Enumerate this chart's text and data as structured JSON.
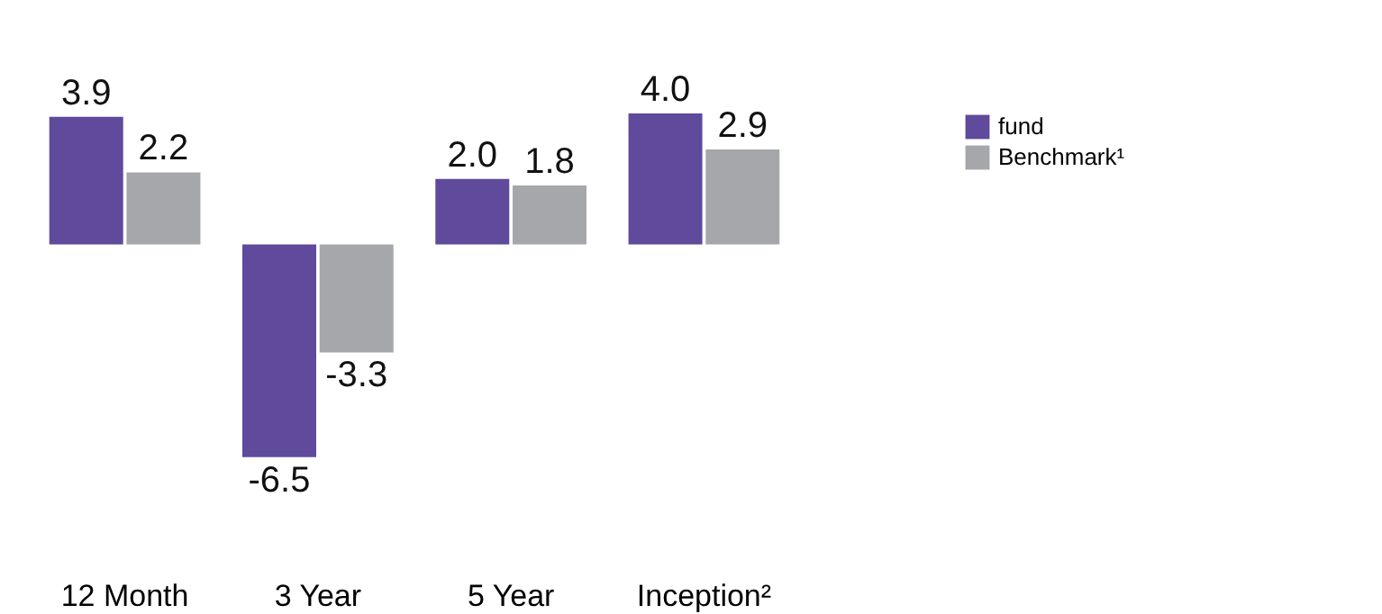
{
  "chart_data": {
    "type": "bar",
    "categories": [
      "12 Month",
      "3 Year",
      "5 Year",
      "Inception²"
    ],
    "series": [
      {
        "name": "fund",
        "color": "#5f4a9c",
        "values": [
          3.9,
          -6.5,
          2.0,
          4.0
        ],
        "value_labels": [
          "3.9",
          "-6.5",
          "2.0",
          "4.0"
        ]
      },
      {
        "name": "Benchmark¹",
        "color": "#a6a7ab",
        "values": [
          2.2,
          -3.3,
          1.8,
          2.9
        ],
        "value_labels": [
          "2.2",
          "-3.3",
          "1.8",
          "2.9"
        ]
      }
    ],
    "legend": "top right",
    "grid": false
  }
}
